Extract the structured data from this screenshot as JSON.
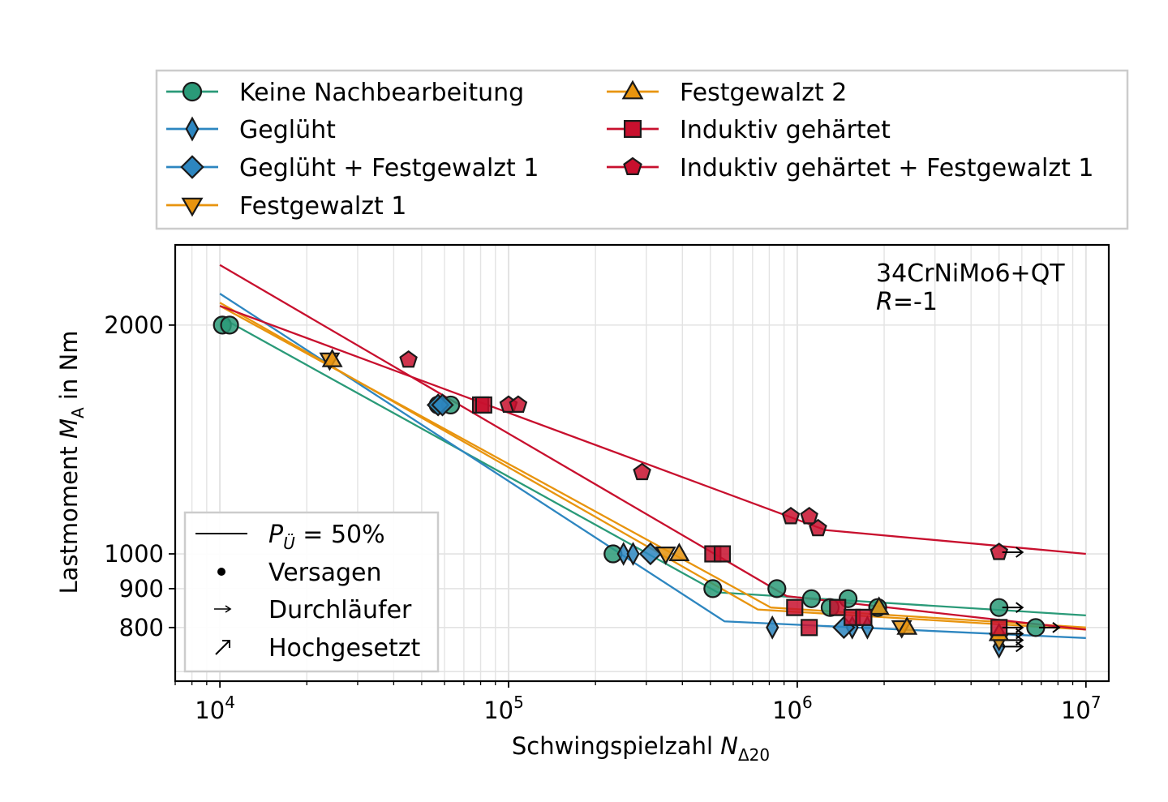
{
  "chart_data": {
    "type": "scatter",
    "xscale": "log",
    "yscale": "log",
    "xlim": [
      7000,
      12000000
    ],
    "ylim": [
      680,
      2550
    ],
    "grid": true,
    "legend_placement": "top",
    "xlabel": "Schwingspielzahl",
    "xlabel_symbol": "N",
    "xlabel_sub": "Δ20",
    "ylabel": "Lastmoment",
    "ylabel_symbol": "M",
    "ylabel_sub": "A",
    "ylabel_suffix": "in Nm",
    "x_ticks": [
      {
        "value": 10000,
        "base": "10",
        "exp": "4"
      },
      {
        "value": 100000,
        "base": "10",
        "exp": "5"
      },
      {
        "value": 1000000,
        "base": "10",
        "exp": "6"
      },
      {
        "value": 10000000,
        "base": "10",
        "exp": "7"
      }
    ],
    "y_ticks": [
      {
        "value": 800,
        "label": "800"
      },
      {
        "value": 900,
        "label": "900"
      },
      {
        "value": 1000,
        "label": "1000"
      },
      {
        "value": 2000,
        "label": "2000"
      }
    ],
    "annotation": {
      "line1": "34CrNiMo6+QT",
      "line2_italic": "R",
      "line2_rest": "=-1"
    },
    "series": [
      {
        "name": "Keine Nachbearbeitung",
        "color": "#2a9a78",
        "marker": "circle",
        "curve": [
          [
            10000,
            2050
          ],
          [
            530000,
            890
          ],
          [
            10000000,
            830
          ]
        ],
        "points": [
          [
            10200,
            2000
          ],
          [
            10800,
            2000
          ],
          [
            57000,
            1570
          ],
          [
            63000,
            1570
          ],
          [
            230000,
            1000
          ],
          [
            510000,
            900
          ],
          [
            850000,
            900
          ],
          [
            1120000,
            873
          ],
          [
            1300000,
            850
          ],
          [
            1500000,
            873
          ],
          [
            1900000,
            850
          ]
        ],
        "runouts": [
          [
            5000000,
            850
          ],
          [
            6700000,
            800
          ]
        ]
      },
      {
        "name": "Geglüht",
        "color": "#2d86c0",
        "marker": "thin-diamond",
        "curve": [
          [
            10000,
            2200
          ],
          [
            560000,
            815
          ],
          [
            10000000,
            775
          ]
        ],
        "points": [
          [
            250000,
            1000
          ],
          [
            270000,
            1000
          ],
          [
            820000,
            800
          ],
          [
            1550000,
            800
          ],
          [
            1750000,
            800
          ]
        ],
        "runouts": [
          [
            5000000,
            755
          ]
        ]
      },
      {
        "name": "Geglüht + Festgewalzt 1",
        "color": "#2d86c0",
        "marker": "diamond",
        "curve": [],
        "points": [
          [
            57000,
            1570
          ],
          [
            59000,
            1570
          ],
          [
            310000,
            1000
          ],
          [
            1450000,
            800
          ]
        ],
        "runouts": []
      },
      {
        "name": "Festgewalzt 1",
        "color": "#e8940e",
        "marker": "triangle-down",
        "curve": [
          [
            10000,
            2140
          ],
          [
            730000,
            845
          ],
          [
            10000000,
            795
          ]
        ],
        "points": [
          [
            24000,
            1800
          ],
          [
            350000,
            1000
          ],
          [
            2300000,
            800
          ]
        ],
        "runouts": [
          [
            5000000,
            770
          ]
        ]
      },
      {
        "name": "Festgewalzt 2",
        "color": "#e8940e",
        "marker": "triangle-up",
        "curve": [
          [
            10000,
            2120
          ],
          [
            810000,
            850
          ],
          [
            10000000,
            800
          ]
        ],
        "points": [
          [
            24500,
            1800
          ],
          [
            390000,
            1000
          ],
          [
            1920000,
            850
          ],
          [
            2400000,
            800
          ]
        ],
        "runouts": [
          [
            5000000,
            785
          ]
        ]
      },
      {
        "name": "Induktiv gehärtet",
        "color": "#c8102e",
        "marker": "square",
        "curve": [
          [
            10000,
            2400
          ],
          [
            920000,
            880
          ],
          [
            10000000,
            795
          ]
        ],
        "points": [
          [
            80000,
            1570
          ],
          [
            82000,
            1570
          ],
          [
            510000,
            1000
          ],
          [
            550000,
            1000
          ],
          [
            980000,
            850
          ],
          [
            1100000,
            800
          ],
          [
            1380000,
            850
          ],
          [
            1550000,
            825
          ],
          [
            1700000,
            825
          ]
        ],
        "runouts": [
          [
            5000000,
            800
          ]
        ]
      },
      {
        "name": "Induktiv gehärtet + Festgewalzt 1",
        "color": "#c8102e",
        "marker": "pentagon",
        "curve": [
          [
            10000,
            2120
          ],
          [
            1250000,
            1075
          ],
          [
            10000000,
            1000
          ]
        ],
        "points": [
          [
            45000,
            1800
          ],
          [
            100000,
            1570
          ],
          [
            108000,
            1570
          ],
          [
            290000,
            1280
          ],
          [
            950000,
            1120
          ],
          [
            1100000,
            1120
          ],
          [
            1180000,
            1080
          ]
        ],
        "runouts": [
          [
            5000000,
            1005
          ]
        ]
      }
    ],
    "legend_key": [
      {
        "symbol": "line",
        "label_italic": "P",
        "label_sub": "Ü",
        "label_rest": " = 50%"
      },
      {
        "symbol": "dot",
        "label": "Versagen"
      },
      {
        "symbol": "arrow-right",
        "label": "Durchläufer"
      },
      {
        "symbol": "arrow-up-right",
        "label": "Hochgesetzt"
      }
    ]
  }
}
